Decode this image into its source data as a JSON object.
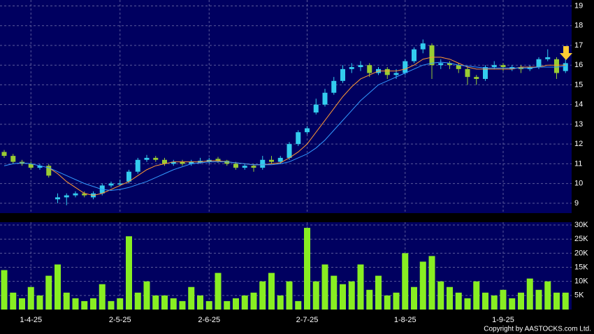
{
  "chart_data": [
    {
      "type": "candlestick",
      "open": [
        11.6,
        11.4,
        11.1,
        11.0,
        10.8,
        10.9,
        9.2,
        9.3,
        9.4,
        9.5,
        9.3,
        9.5,
        9.9,
        9.95,
        10.1,
        10.6,
        11.2,
        11.3,
        11.2,
        11.0,
        11.1,
        11.0,
        11.05,
        11.1,
        11.25,
        11.15,
        11.0,
        10.8,
        10.9,
        10.8,
        11.2,
        11.1,
        11.3,
        12.0,
        12.6,
        13.6,
        14.0,
        14.6,
        15.2,
        15.8,
        15.9,
        16.0,
        15.6,
        15.8,
        15.5,
        15.6,
        16.2,
        16.8,
        17.0,
        16.0,
        16.1,
        16.0,
        15.8,
        15.4,
        15.3,
        15.9,
        16.0,
        15.8,
        15.9,
        15.8,
        15.9,
        16.3,
        16.3,
        15.7
      ],
      "high": [
        11.7,
        11.5,
        11.2,
        11.1,
        11.0,
        11.0,
        9.5,
        9.5,
        9.6,
        9.6,
        9.6,
        10.0,
        10.1,
        10.2,
        10.7,
        11.3,
        11.45,
        11.4,
        11.3,
        11.2,
        11.2,
        11.2,
        11.3,
        11.3,
        11.35,
        11.2,
        11.1,
        11.0,
        11.0,
        11.4,
        11.4,
        11.4,
        12.1,
        12.7,
        12.9,
        14.3,
        14.8,
        15.4,
        16.0,
        16.1,
        16.2,
        16.1,
        15.9,
        15.9,
        15.8,
        16.3,
        16.9,
        17.3,
        17.1,
        16.3,
        16.2,
        16.1,
        15.9,
        15.5,
        16.0,
        16.2,
        16.1,
        16.0,
        16.0,
        16.0,
        16.4,
        16.8,
        16.4,
        16.3
      ],
      "low": [
        11.3,
        11.0,
        10.9,
        10.7,
        10.7,
        10.3,
        9.0,
        8.9,
        9.3,
        9.3,
        9.2,
        9.4,
        9.8,
        9.9,
        10.0,
        10.5,
        11.1,
        11.1,
        10.9,
        10.9,
        10.9,
        10.9,
        11.0,
        11.0,
        11.05,
        10.9,
        10.7,
        10.7,
        10.6,
        10.7,
        11.0,
        11.0,
        11.2,
        11.9,
        12.5,
        13.5,
        13.9,
        14.5,
        15.1,
        15.6,
        15.7,
        15.4,
        15.5,
        15.3,
        15.3,
        15.5,
        16.1,
        16.6,
        15.3,
        15.8,
        15.8,
        15.6,
        15.0,
        15.0,
        15.2,
        15.8,
        15.7,
        15.7,
        15.6,
        15.7,
        15.8,
        16.2,
        15.3,
        15.6
      ],
      "close": [
        11.4,
        11.1,
        11.0,
        10.8,
        10.9,
        10.4,
        9.3,
        9.4,
        9.5,
        9.4,
        9.5,
        9.9,
        10.0,
        10.0,
        10.6,
        11.2,
        11.3,
        11.2,
        11.0,
        11.1,
        11.0,
        11.1,
        11.15,
        11.2,
        11.15,
        11.0,
        10.8,
        10.9,
        10.8,
        11.2,
        11.1,
        11.3,
        12.0,
        12.6,
        12.8,
        14.0,
        14.6,
        15.2,
        15.8,
        15.9,
        16.0,
        15.6,
        15.8,
        15.5,
        15.6,
        16.2,
        16.8,
        17.1,
        16.0,
        16.1,
        16.0,
        15.8,
        15.4,
        15.3,
        15.9,
        16.0,
        15.9,
        15.9,
        15.8,
        15.9,
        16.3,
        16.4,
        15.6,
        16.1
      ],
      "up_color": "#33ccee",
      "down_color": "#99cc33",
      "series": [
        {
          "color": "#ff9933",
          "values": [
            null,
            null,
            null,
            null,
            null,
            10.8,
            10.5,
            10.1,
            9.8,
            9.5,
            9.4,
            9.5,
            9.7,
            9.9,
            10.1,
            10.4,
            10.7,
            10.9,
            11.0,
            11.1,
            11.1,
            11.1,
            11.1,
            11.15,
            11.15,
            11.1,
            11.05,
            11.0,
            10.95,
            10.95,
            11.0,
            11.05,
            11.3,
            11.6,
            12.0,
            12.6,
            13.2,
            13.8,
            14.4,
            14.9,
            15.3,
            15.5,
            15.7,
            15.7,
            15.7,
            15.8,
            16.0,
            16.3,
            16.4,
            16.4,
            16.3,
            16.1,
            15.9,
            15.8,
            15.8,
            15.8,
            15.8,
            15.8,
            15.9,
            15.9,
            15.9,
            16.0,
            16.0,
            16.0
          ]
        },
        {
          "color": "#3399ff",
          "values": [
            10.9,
            11.0,
            11.05,
            11.0,
            10.9,
            10.8,
            10.6,
            10.4,
            10.2,
            10.0,
            9.85,
            9.7,
            9.65,
            9.7,
            9.8,
            9.95,
            10.1,
            10.3,
            10.5,
            10.7,
            10.85,
            11.0,
            11.05,
            11.1,
            11.1,
            11.1,
            11.05,
            11.0,
            10.95,
            10.95,
            10.95,
            11.0,
            11.1,
            11.3,
            11.5,
            11.8,
            12.2,
            12.7,
            13.2,
            13.7,
            14.2,
            14.6,
            15.0,
            15.2,
            15.4,
            15.6,
            15.8,
            16.0,
            16.1,
            16.15,
            16.1,
            16.0,
            15.95,
            15.9,
            15.85,
            15.85,
            15.85,
            15.85,
            15.85,
            15.85,
            15.9,
            15.9,
            15.9,
            15.95
          ]
        }
      ],
      "ylim": [
        8.5,
        19.3
      ],
      "yticks": [
        9,
        10,
        11,
        12,
        13,
        14,
        15,
        16,
        17,
        18,
        19
      ],
      "grid": true
    },
    {
      "type": "bar",
      "categories": [
        null,
        null,
        null,
        "1-4-25",
        null,
        null,
        null,
        null,
        null,
        null,
        null,
        null,
        null,
        "2-5-25",
        null,
        null,
        null,
        null,
        null,
        null,
        null,
        null,
        null,
        "2-6-25",
        null,
        null,
        null,
        null,
        null,
        null,
        null,
        null,
        null,
        null,
        "2-7-25",
        null,
        null,
        null,
        null,
        null,
        null,
        null,
        null,
        null,
        null,
        "1-8-25",
        null,
        null,
        null,
        null,
        null,
        null,
        null,
        null,
        null,
        null,
        "1-9-25",
        null,
        null,
        null,
        null,
        null,
        null,
        null
      ],
      "values": [
        14000,
        6000,
        4000,
        8000,
        5000,
        12000,
        16000,
        6000,
        4000,
        3000,
        4000,
        9000,
        3000,
        4000,
        26000,
        6000,
        10000,
        5000,
        5000,
        4000,
        3000,
        8000,
        5000,
        3000,
        13000,
        3000,
        4000,
        5000,
        6000,
        10000,
        13000,
        5000,
        10000,
        3000,
        29000,
        10000,
        16000,
        12000,
        9000,
        10000,
        16000,
        7000,
        12000,
        5000,
        6000,
        20000,
        8000,
        17000,
        19000,
        10000,
        8000,
        6000,
        4000,
        10000,
        6000,
        5000,
        7000,
        4000,
        6000,
        11000,
        7000,
        10000,
        6000,
        6000
      ],
      "color": "#88ee22",
      "ylim": [
        0,
        31000
      ],
      "yticks": [
        {
          "value": 5000,
          "label": "5K"
        },
        {
          "value": 10000,
          "label": "10K"
        },
        {
          "value": 15000,
          "label": "15K"
        },
        {
          "value": 20000,
          "label": "20K"
        },
        {
          "value": 25000,
          "label": "25K"
        },
        {
          "value": 30000,
          "label": "30K"
        }
      ],
      "grid": true,
      "copyright": "Copyright by AASTOCKS.com Ltd."
    }
  ]
}
